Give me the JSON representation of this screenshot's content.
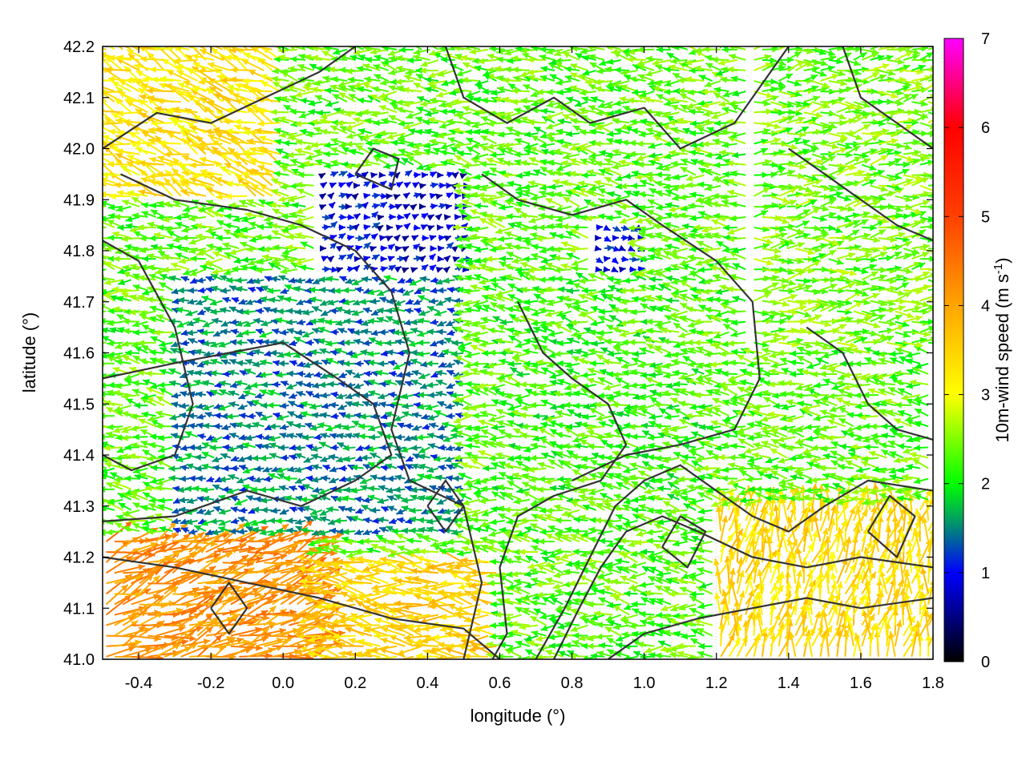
{
  "chart_data": {
    "type": "vector-field",
    "xlabel": "longitude (°)",
    "ylabel": "latitude (°)",
    "xlim": [
      -0.5,
      1.8
    ],
    "ylim": [
      41.0,
      42.2
    ],
    "x_ticks": [
      -0.4,
      -0.2,
      0.0,
      0.2,
      0.4,
      0.6,
      0.8,
      1.0,
      1.2,
      1.4,
      1.6,
      1.8
    ],
    "x_tick_labels": [
      "-0.4",
      "-0.2",
      "0.0",
      "0.2",
      "0.4",
      "0.6",
      "0.8",
      "1.0",
      "1.2",
      "1.4",
      "1.6",
      "1.8"
    ],
    "y_ticks": [
      41.0,
      41.1,
      41.2,
      41.3,
      41.4,
      41.5,
      41.6,
      41.7,
      41.8,
      41.9,
      42.0,
      42.1,
      42.2
    ],
    "y_tick_labels": [
      "41.0",
      "41.1",
      "41.2",
      "41.3",
      "41.4",
      "41.5",
      "41.6",
      "41.7",
      "41.8",
      "41.9",
      "42.0",
      "42.1",
      "42.2"
    ],
    "grid": true,
    "colorbar": {
      "label": "10m-wind speed (m s",
      "label_exponent": "-1",
      "label_close": ")",
      "range": [
        0,
        7
      ],
      "ticks": [
        0,
        1,
        2,
        3,
        4,
        5,
        6,
        7
      ],
      "tick_labels": [
        "0",
        "1",
        "2",
        "3",
        "4",
        "5",
        "6",
        "7"
      ],
      "stops": [
        [
          0,
          "#000000"
        ],
        [
          1,
          "#0000ff"
        ],
        [
          1.6,
          "#00a060"
        ],
        [
          2,
          "#00ff00"
        ],
        [
          3,
          "#ffff00"
        ],
        [
          4,
          "#ffa500"
        ],
        [
          5,
          "#ff4000"
        ],
        [
          6,
          "#ff0000"
        ],
        [
          7,
          "#ff00ff"
        ]
      ]
    },
    "wind_regions": [
      {
        "lon": [
          -0.5,
          0.1
        ],
        "lat": [
          41.0,
          41.25
        ],
        "u": 2.6,
        "v": 0.9,
        "speed": 4.2
      },
      {
        "lon": [
          0.1,
          0.6
        ],
        "lat": [
          41.0,
          41.2
        ],
        "u": -3.2,
        "v": 0.3,
        "speed": 3.5
      },
      {
        "lon": [
          -0.5,
          0.0
        ],
        "lat": [
          41.9,
          42.2
        ],
        "u": -3.0,
        "v": 1.2,
        "speed": 3.3
      },
      {
        "lon": [
          -0.3,
          0.5
        ],
        "lat": [
          41.25,
          41.75
        ],
        "u": -1.6,
        "v": 0.0,
        "speed": 1.5
      },
      {
        "lon": [
          0.1,
          0.5
        ],
        "lat": [
          41.75,
          41.95
        ],
        "u": 0.6,
        "v": 0.2,
        "speed": 0.9
      },
      {
        "lon": [
          0.85,
          1.0
        ],
        "lat": [
          41.7,
          41.85
        ],
        "u": 0.7,
        "v": -0.2,
        "speed": 1.0
      },
      {
        "lon": [
          0.6,
          1.2
        ],
        "lat": [
          41.3,
          41.75
        ],
        "u": -2.2,
        "v": 0.3,
        "speed": 2.2
      },
      {
        "lon": [
          1.2,
          1.8
        ],
        "lat": [
          41.0,
          41.3
        ],
        "u": 0.4,
        "v": 2.4,
        "speed": 3.4
      },
      {
        "lon": [
          1.3,
          1.8
        ],
        "lat": [
          41.6,
          42.2
        ],
        "u": 2.4,
        "v": 0.2,
        "speed": 2.4
      }
    ],
    "default_wind": {
      "u": -2.3,
      "v": 0.2,
      "speed": 2.3
    },
    "contours": [
      [
        [
          -0.5,
          41.82
        ],
        [
          -0.4,
          41.78
        ],
        [
          -0.3,
          41.65
        ],
        [
          -0.25,
          41.5
        ],
        [
          -0.3,
          41.4
        ],
        [
          -0.42,
          41.37
        ],
        [
          -0.5,
          41.4
        ]
      ],
      [
        [
          -0.5,
          41.55
        ],
        [
          -0.3,
          41.58
        ],
        [
          -0.15,
          41.6
        ],
        [
          0.0,
          41.62
        ],
        [
          0.15,
          41.55
        ],
        [
          0.25,
          41.5
        ],
        [
          0.3,
          41.4
        ],
        [
          0.2,
          41.35
        ],
        [
          0.05,
          41.3
        ],
        [
          -0.1,
          41.33
        ],
        [
          -0.3,
          41.28
        ],
        [
          -0.5,
          41.27
        ]
      ],
      [
        [
          -0.5,
          41.2
        ],
        [
          -0.3,
          41.18
        ],
        [
          -0.1,
          41.15
        ],
        [
          0.1,
          41.12
        ],
        [
          0.3,
          41.08
        ],
        [
          0.5,
          41.06
        ],
        [
          0.6,
          41.0
        ]
      ],
      [
        [
          -0.5,
          42.0
        ],
        [
          -0.35,
          42.07
        ],
        [
          -0.2,
          42.05
        ],
        [
          -0.05,
          42.1
        ],
        [
          0.1,
          42.15
        ],
        [
          0.2,
          42.2
        ]
      ],
      [
        [
          -0.45,
          41.95
        ],
        [
          -0.3,
          41.9
        ],
        [
          -0.1,
          41.88
        ],
        [
          0.05,
          41.85
        ],
        [
          0.2,
          41.8
        ],
        [
          0.3,
          41.72
        ],
        [
          0.35,
          41.6
        ],
        [
          0.3,
          41.45
        ],
        [
          0.35,
          41.35
        ],
        [
          0.5,
          41.3
        ],
        [
          0.55,
          41.15
        ],
        [
          0.5,
          41.0
        ]
      ],
      [
        [
          0.45,
          42.2
        ],
        [
          0.5,
          42.1
        ],
        [
          0.62,
          42.05
        ],
        [
          0.75,
          42.1
        ],
        [
          0.85,
          42.05
        ],
        [
          1.0,
          42.08
        ],
        [
          1.1,
          42.0
        ],
        [
          1.25,
          42.05
        ],
        [
          1.35,
          42.15
        ],
        [
          1.4,
          42.2
        ]
      ],
      [
        [
          0.55,
          41.95
        ],
        [
          0.65,
          41.9
        ],
        [
          0.8,
          41.87
        ],
        [
          0.95,
          41.9
        ],
        [
          1.05,
          41.85
        ],
        [
          1.2,
          41.78
        ],
        [
          1.3,
          41.7
        ],
        [
          1.32,
          41.55
        ],
        [
          1.25,
          41.45
        ],
        [
          1.1,
          41.42
        ],
        [
          0.95,
          41.4
        ],
        [
          0.8,
          41.35
        ]
      ],
      [
        [
          0.65,
          41.7
        ],
        [
          0.72,
          41.6
        ],
        [
          0.8,
          41.55
        ],
        [
          0.9,
          41.5
        ],
        [
          0.95,
          41.42
        ],
        [
          0.88,
          41.35
        ],
        [
          0.75,
          41.32
        ],
        [
          0.65,
          41.28
        ],
        [
          0.6,
          41.18
        ],
        [
          0.62,
          41.05
        ],
        [
          0.58,
          41.0
        ]
      ],
      [
        [
          0.7,
          41.0
        ],
        [
          0.78,
          41.1
        ],
        [
          0.85,
          41.2
        ],
        [
          0.92,
          41.3
        ],
        [
          1.0,
          41.35
        ],
        [
          1.1,
          41.38
        ],
        [
          1.2,
          41.33
        ],
        [
          1.3,
          41.28
        ],
        [
          1.4,
          41.25
        ],
        [
          1.5,
          41.3
        ],
        [
          1.62,
          41.35
        ],
        [
          1.8,
          41.33
        ]
      ],
      [
        [
          0.75,
          41.0
        ],
        [
          0.82,
          41.1
        ],
        [
          0.88,
          41.18
        ],
        [
          0.95,
          41.25
        ],
        [
          1.05,
          41.28
        ],
        [
          1.15,
          41.25
        ],
        [
          1.3,
          41.2
        ],
        [
          1.45,
          41.18
        ],
        [
          1.6,
          41.2
        ],
        [
          1.8,
          41.18
        ]
      ],
      [
        [
          0.9,
          41.0
        ],
        [
          1.0,
          41.05
        ],
        [
          1.15,
          41.08
        ],
        [
          1.3,
          41.1
        ],
        [
          1.45,
          41.12
        ],
        [
          1.6,
          41.1
        ],
        [
          1.8,
          41.12
        ]
      ],
      [
        [
          1.45,
          41.65
        ],
        [
          1.55,
          41.6
        ],
        [
          1.62,
          41.5
        ],
        [
          1.7,
          41.45
        ],
        [
          1.8,
          41.43
        ]
      ],
      [
        [
          1.4,
          42.0
        ],
        [
          1.5,
          41.95
        ],
        [
          1.6,
          41.9
        ],
        [
          1.7,
          41.85
        ],
        [
          1.8,
          41.82
        ]
      ],
      [
        [
          1.55,
          42.2
        ],
        [
          1.6,
          42.1
        ],
        [
          1.7,
          42.05
        ],
        [
          1.8,
          42.0
        ]
      ],
      [
        [
          -0.2,
          41.1
        ],
        [
          -0.15,
          41.15
        ],
        [
          -0.1,
          41.1
        ],
        [
          -0.15,
          41.05
        ],
        [
          -0.2,
          41.1
        ]
      ],
      [
        [
          0.4,
          41.3
        ],
        [
          0.45,
          41.35
        ],
        [
          0.5,
          41.3
        ],
        [
          0.45,
          41.25
        ],
        [
          0.4,
          41.3
        ]
      ],
      [
        [
          1.05,
          41.22
        ],
        [
          1.1,
          41.28
        ],
        [
          1.17,
          41.25
        ],
        [
          1.12,
          41.18
        ],
        [
          1.05,
          41.22
        ]
      ],
      [
        [
          0.2,
          41.95
        ],
        [
          0.25,
          42.0
        ],
        [
          0.32,
          41.98
        ],
        [
          0.3,
          41.92
        ],
        [
          0.2,
          41.95
        ]
      ],
      [
        [
          1.62,
          41.25
        ],
        [
          1.68,
          41.32
        ],
        [
          1.75,
          41.28
        ],
        [
          1.7,
          41.2
        ],
        [
          1.62,
          41.25
        ]
      ]
    ]
  }
}
